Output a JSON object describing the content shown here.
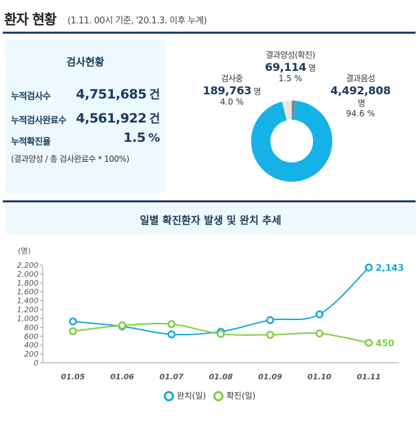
{
  "header": {
    "title": "환자 현황",
    "subtitle": "(1.11. 00시 기준, '20.1.3. 이후 누계)"
  },
  "test_status": {
    "title": "검사현황",
    "rows": [
      {
        "label": "누적검사수",
        "value": "4,751,685",
        "unit": "건"
      },
      {
        "label": "누적검사완료수",
        "value": "4,561,922",
        "unit": "건"
      },
      {
        "label": "누적확진율",
        "value": "1.5",
        "unit": "%"
      }
    ],
    "note": "(결과양성 / 총 검사완료수 * 100%)"
  },
  "donut": {
    "unit": "명",
    "segments": [
      {
        "name": "결과양성(확진)",
        "value": "69,114",
        "percent": "1.5 %",
        "share": 1.5,
        "color": "#7a8a99"
      },
      {
        "name": "결과음성",
        "value": "4,492,808",
        "percent": "94.6 %",
        "share": 94.6,
        "color": "#15b2e8"
      },
      {
        "name": "검사중",
        "value": "189,763",
        "percent": "4.0 %",
        "share": 4.0,
        "color": "#e7e7e7"
      }
    ]
  },
  "trend": {
    "title": "일별 확진환자 발생 및 완치 추세",
    "unit_label": "(명)"
  },
  "chart_data": {
    "type": "line",
    "categories": [
      "01.05",
      "01.06",
      "01.07",
      "01.08",
      "01.09",
      "01.10",
      "01.11"
    ],
    "ylim": [
      0,
      2200
    ],
    "yticks": [
      "0",
      "200",
      "400",
      "600",
      "800",
      "1,000",
      "1,200",
      "1,400",
      "1,600",
      "1,800",
      "2,000",
      "2,200"
    ],
    "grid": false,
    "legend": "bottom",
    "series": [
      {
        "name": "완치(일)",
        "values": [
          930,
          820,
          640,
          700,
          960,
          1090,
          2143
        ],
        "color": "#15a9dd",
        "end_label": "2,143"
      },
      {
        "name": "확진(일)",
        "values": [
          710,
          840,
          870,
          650,
          630,
          660,
          450
        ],
        "color": "#7ccf3d",
        "end_label": "450"
      }
    ]
  }
}
